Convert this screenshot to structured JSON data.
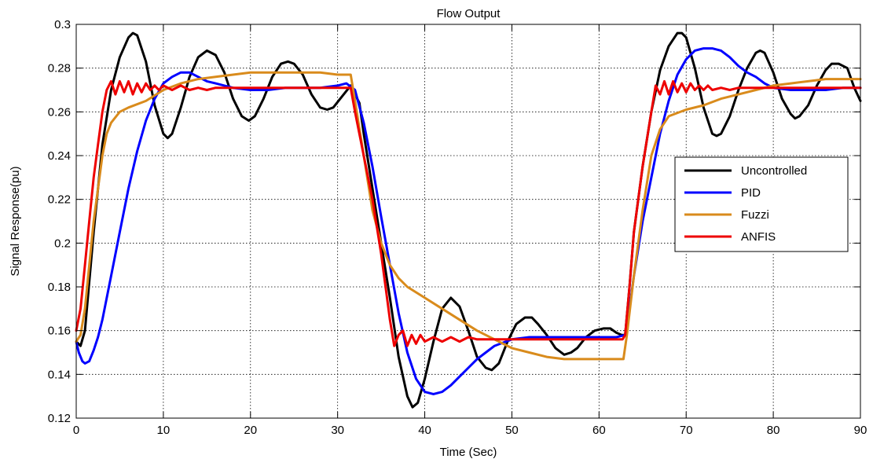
{
  "chart_data": {
    "type": "line",
    "title": "Flow Output",
    "xlabel": "Time (Sec)",
    "ylabel": "Signal Response(pu)",
    "xlim": [
      0,
      90
    ],
    "ylim": [
      0.12,
      0.3
    ],
    "x_ticks": [
      0,
      10,
      20,
      30,
      40,
      50,
      60,
      70,
      80,
      90
    ],
    "y_ticks": [
      0.12,
      0.14,
      0.16,
      0.18,
      0.2,
      0.22,
      0.24,
      0.26,
      0.28,
      0.3
    ],
    "x_tick_labels": [
      "0",
      "10",
      "20",
      "30",
      "40",
      "50",
      "60",
      "70",
      "80",
      "90"
    ],
    "y_tick_labels": [
      "0.12",
      "0.14",
      "0.16",
      "0.18",
      "0.2",
      "0.22",
      "0.24",
      "0.26",
      "0.28",
      "0.3"
    ],
    "grid": true,
    "legend_position": "right",
    "series": [
      {
        "name": "Uncontrolled",
        "color": "#000000",
        "x": [
          0,
          0.5,
          1,
          2,
          3,
          4,
          5,
          6,
          6.5,
          7,
          8,
          9,
          10,
          10.5,
          11,
          12,
          13,
          14,
          15,
          16,
          17,
          18,
          19,
          19.8,
          20.5,
          21.5,
          22.5,
          23.5,
          24.3,
          25,
          26,
          27,
          28,
          28.8,
          29.5,
          30.5,
          31.5,
          32.5,
          33,
          34,
          35,
          36,
          37,
          38,
          38.6,
          39.2,
          40,
          41,
          42,
          43,
          44,
          45,
          46,
          47,
          47.7,
          48.5,
          49.5,
          50.5,
          51.5,
          52.3,
          53,
          54,
          55,
          56,
          56.8,
          57.5,
          58.5,
          59.5,
          60.5,
          61.3,
          62,
          62.6,
          63,
          63.5,
          64,
          65,
          66,
          67,
          68,
          69,
          69.5,
          70,
          71,
          72,
          73,
          73.5,
          74,
          75,
          76,
          77,
          78,
          78.5,
          79,
          80,
          81,
          82,
          82.5,
          83,
          84,
          85,
          86,
          86.7,
          87.5,
          88.5,
          89.3,
          90
        ],
        "y": [
          0.155,
          0.153,
          0.16,
          0.205,
          0.245,
          0.27,
          0.285,
          0.294,
          0.296,
          0.295,
          0.283,
          0.263,
          0.25,
          0.248,
          0.25,
          0.262,
          0.276,
          0.285,
          0.288,
          0.286,
          0.278,
          0.266,
          0.258,
          0.256,
          0.258,
          0.266,
          0.276,
          0.282,
          0.283,
          0.282,
          0.277,
          0.268,
          0.262,
          0.261,
          0.262,
          0.267,
          0.272,
          0.264,
          0.25,
          0.225,
          0.2,
          0.175,
          0.148,
          0.13,
          0.125,
          0.127,
          0.138,
          0.155,
          0.17,
          0.175,
          0.171,
          0.16,
          0.148,
          0.143,
          0.142,
          0.145,
          0.155,
          0.163,
          0.166,
          0.166,
          0.163,
          0.158,
          0.152,
          0.149,
          0.15,
          0.152,
          0.157,
          0.16,
          0.161,
          0.161,
          0.159,
          0.158,
          0.158,
          0.18,
          0.205,
          0.235,
          0.26,
          0.279,
          0.29,
          0.296,
          0.296,
          0.294,
          0.28,
          0.262,
          0.25,
          0.249,
          0.25,
          0.258,
          0.27,
          0.28,
          0.287,
          0.288,
          0.287,
          0.278,
          0.266,
          0.259,
          0.257,
          0.258,
          0.263,
          0.272,
          0.279,
          0.282,
          0.282,
          0.28,
          0.271,
          0.265
        ]
      },
      {
        "name": "PID",
        "color": "#0000ff",
        "x": [
          0,
          0.3,
          0.7,
          1,
          1.5,
          2,
          2.5,
          3,
          4,
          5,
          6,
          7,
          8,
          9,
          10,
          11,
          12,
          13,
          14,
          15,
          16,
          17,
          18,
          20,
          22,
          24,
          26,
          28,
          30,
          31,
          32,
          33,
          34,
          35,
          36,
          37,
          38,
          39,
          40,
          41,
          42,
          43,
          44,
          45,
          46,
          47,
          48,
          50,
          52,
          54,
          56,
          58,
          60,
          61,
          62,
          63,
          63.5,
          64,
          65,
          66,
          67,
          68,
          69,
          70,
          71,
          72,
          73,
          74,
          75,
          76,
          77,
          78,
          79,
          80,
          82,
          84,
          86,
          88,
          90
        ],
        "y": [
          0.155,
          0.15,
          0.146,
          0.145,
          0.146,
          0.151,
          0.157,
          0.165,
          0.185,
          0.205,
          0.225,
          0.242,
          0.256,
          0.266,
          0.273,
          0.276,
          0.278,
          0.278,
          0.276,
          0.274,
          0.273,
          0.272,
          0.271,
          0.27,
          0.27,
          0.271,
          0.271,
          0.271,
          0.272,
          0.273,
          0.27,
          0.255,
          0.235,
          0.212,
          0.19,
          0.168,
          0.15,
          0.138,
          0.132,
          0.131,
          0.132,
          0.135,
          0.139,
          0.143,
          0.147,
          0.15,
          0.153,
          0.156,
          0.157,
          0.157,
          0.157,
          0.157,
          0.157,
          0.157,
          0.157,
          0.158,
          0.17,
          0.185,
          0.21,
          0.23,
          0.25,
          0.265,
          0.277,
          0.284,
          0.288,
          0.289,
          0.289,
          0.288,
          0.285,
          0.281,
          0.278,
          0.276,
          0.273,
          0.271,
          0.27,
          0.27,
          0.27,
          0.271,
          0.271
        ]
      },
      {
        "name": "Fuzzi",
        "color": "#d98b1c",
        "x": [
          0,
          0.5,
          1,
          2,
          3,
          3.5,
          4,
          5,
          6,
          8,
          10,
          12,
          14,
          16,
          18,
          20,
          22,
          24,
          26,
          28,
          30,
          31,
          31.5,
          32,
          33,
          34,
          35,
          36,
          37,
          38,
          40,
          42,
          44,
          46,
          48,
          50,
          52,
          54,
          56,
          58,
          60,
          62,
          62.8,
          63.2,
          64,
          65,
          66,
          67,
          68,
          70,
          72,
          74,
          76,
          78,
          80,
          82,
          84,
          86,
          88,
          90
        ],
        "y": [
          0.155,
          0.158,
          0.17,
          0.21,
          0.24,
          0.25,
          0.255,
          0.26,
          0.262,
          0.265,
          0.27,
          0.273,
          0.275,
          0.276,
          0.277,
          0.278,
          0.278,
          0.278,
          0.278,
          0.278,
          0.277,
          0.277,
          0.277,
          0.265,
          0.24,
          0.215,
          0.2,
          0.19,
          0.184,
          0.18,
          0.175,
          0.17,
          0.165,
          0.16,
          0.156,
          0.152,
          0.15,
          0.148,
          0.147,
          0.147,
          0.147,
          0.147,
          0.147,
          0.158,
          0.185,
          0.215,
          0.24,
          0.252,
          0.258,
          0.261,
          0.263,
          0.266,
          0.268,
          0.27,
          0.272,
          0.273,
          0.274,
          0.275,
          0.275,
          0.275
        ]
      },
      {
        "name": "ANFIS",
        "color": "#ee0000",
        "x": [
          0,
          0.5,
          1,
          1.5,
          2,
          2.5,
          3,
          3.5,
          4,
          4.5,
          5,
          5.5,
          6,
          6.5,
          7,
          7.5,
          8,
          8.5,
          9,
          9.5,
          10,
          11,
          12,
          13,
          14,
          15,
          16,
          18,
          20,
          22,
          24,
          26,
          28,
          30,
          31,
          31.5,
          32,
          33,
          34,
          35,
          35.5,
          36,
          36.5,
          37,
          37.5,
          38,
          38.5,
          39,
          39.5,
          40,
          41,
          42,
          43,
          44,
          45,
          46,
          48,
          50,
          52,
          54,
          56,
          58,
          60,
          62,
          62.7,
          63,
          63.5,
          64,
          65,
          66,
          66.5,
          67,
          67.5,
          68,
          68.5,
          69,
          69.5,
          70,
          70.5,
          71,
          71.5,
          72,
          72.5,
          73,
          74,
          75,
          76,
          77,
          78,
          80,
          82,
          84,
          86,
          88,
          90
        ],
        "y": [
          0.16,
          0.17,
          0.19,
          0.21,
          0.23,
          0.245,
          0.26,
          0.27,
          0.274,
          0.268,
          0.274,
          0.269,
          0.274,
          0.268,
          0.273,
          0.269,
          0.273,
          0.27,
          0.272,
          0.27,
          0.272,
          0.27,
          0.272,
          0.27,
          0.271,
          0.27,
          0.271,
          0.271,
          0.271,
          0.271,
          0.271,
          0.271,
          0.271,
          0.271,
          0.271,
          0.271,
          0.26,
          0.24,
          0.22,
          0.195,
          0.18,
          0.165,
          0.153,
          0.158,
          0.16,
          0.153,
          0.158,
          0.154,
          0.158,
          0.155,
          0.157,
          0.155,
          0.157,
          0.155,
          0.157,
          0.156,
          0.156,
          0.156,
          0.156,
          0.156,
          0.156,
          0.156,
          0.156,
          0.156,
          0.156,
          0.158,
          0.18,
          0.205,
          0.235,
          0.26,
          0.272,
          0.268,
          0.274,
          0.268,
          0.274,
          0.269,
          0.273,
          0.269,
          0.273,
          0.27,
          0.272,
          0.27,
          0.272,
          0.27,
          0.271,
          0.27,
          0.271,
          0.271,
          0.271,
          0.271,
          0.271,
          0.271,
          0.271,
          0.271,
          0.271
        ]
      }
    ]
  }
}
